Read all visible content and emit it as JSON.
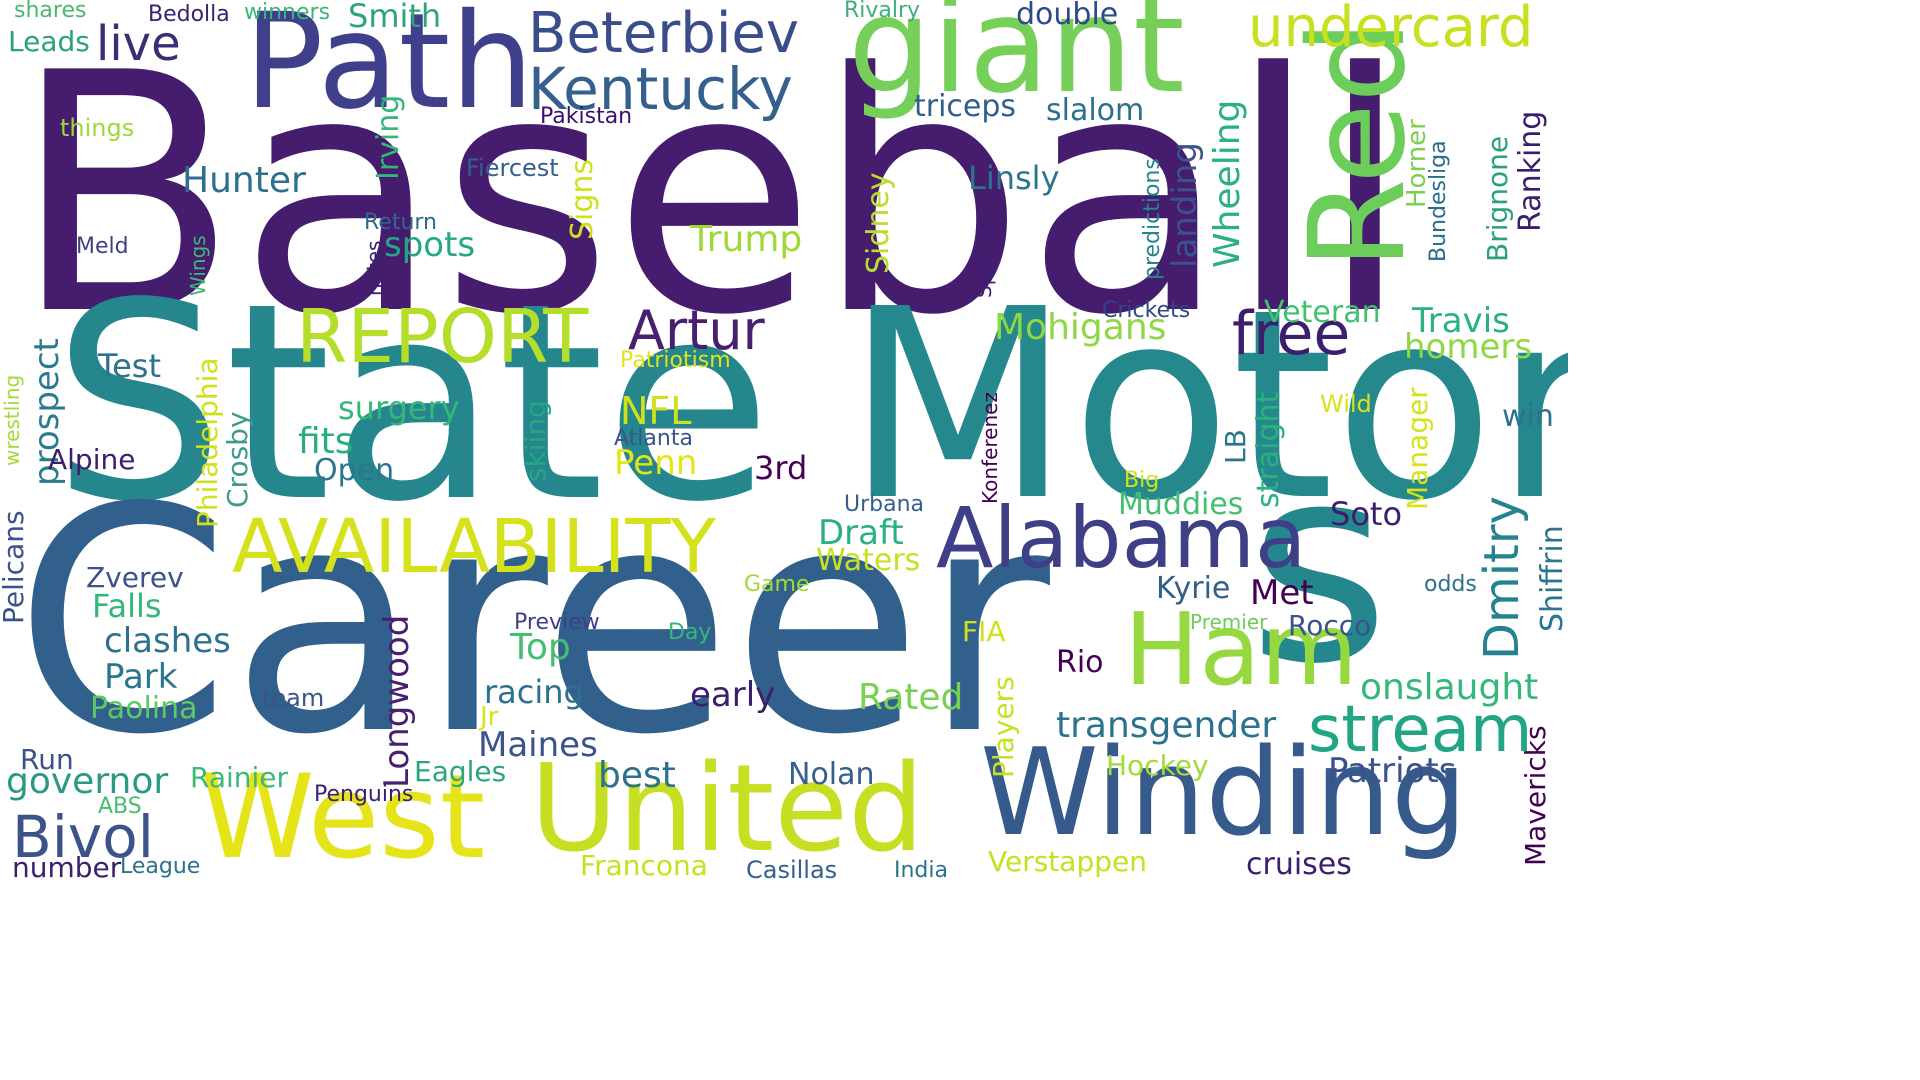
{
  "background_color": "#ffffff",
  "palette": [
    "#440154",
    "#3b528b",
    "#21918c",
    "#5ec962",
    "#fde725"
  ],
  "words": [
    "Baseball",
    "State",
    "Motor",
    "Career",
    "s",
    "Path",
    "giant",
    "Red",
    "Beterbiev",
    "Kentucky",
    "undercard",
    "live",
    "REPORT",
    "Artur",
    "AVAILABILITY",
    "Alabama",
    "Ham",
    "West",
    "United",
    "Winding",
    "stream",
    "free",
    "Dmitry",
    "Bivol",
    "Hunter",
    "Smith",
    "Leads",
    "shares",
    "Bedolla",
    "winners",
    "Rivalry",
    "double",
    "things",
    "triceps",
    "slalom",
    "Pakistan",
    "Irving",
    "Fiercest",
    "Linsly",
    "Wheeling",
    "landing",
    "Horner",
    "Bundesliga",
    "Brignone",
    "Ranking",
    "Signs",
    "Sidney",
    "predictions",
    "Return",
    "Meld",
    "Wings",
    "notes",
    "spots",
    "Trump",
    "Speedway",
    "Crickets",
    "Veteran",
    "Travis",
    "Mohigans",
    "homers",
    "prospect",
    "Philadelphia",
    "Patriotism",
    "Test",
    "surgery",
    "fits",
    "NFL",
    "skiing",
    "Atlanta",
    "Alpine",
    "Open",
    "Penn",
    "3rd",
    "Crosby",
    "wrestling",
    "Pelicans",
    "Konferenez",
    "straight",
    "LB",
    "Manager",
    "Wild",
    "win",
    "Big",
    "Urbana",
    "Muddies",
    "Soto",
    "Shiffrin",
    "Draft",
    "Waters",
    "Zverev",
    "Falls",
    "Game",
    "Kyrie",
    "Met",
    "odds",
    "clashes",
    "Preview",
    "Day",
    "FIA",
    "Premier",
    "Rocco",
    "Park",
    "Longwood",
    "Top",
    "Rio",
    "onslaught",
    "team",
    "racing",
    "early",
    "Rated",
    "Mavericks",
    "Paolina",
    "Jr",
    "transgender",
    "Maines",
    "Players",
    "Run",
    "governor",
    "Rainier",
    "Eagles",
    "best",
    "Nolan",
    "Hockey",
    "Patriots",
    "ABS",
    "Penguins",
    "number",
    "League",
    "Francona",
    "Casillas",
    "India",
    "Verstappen",
    "cruises"
  ]
}
